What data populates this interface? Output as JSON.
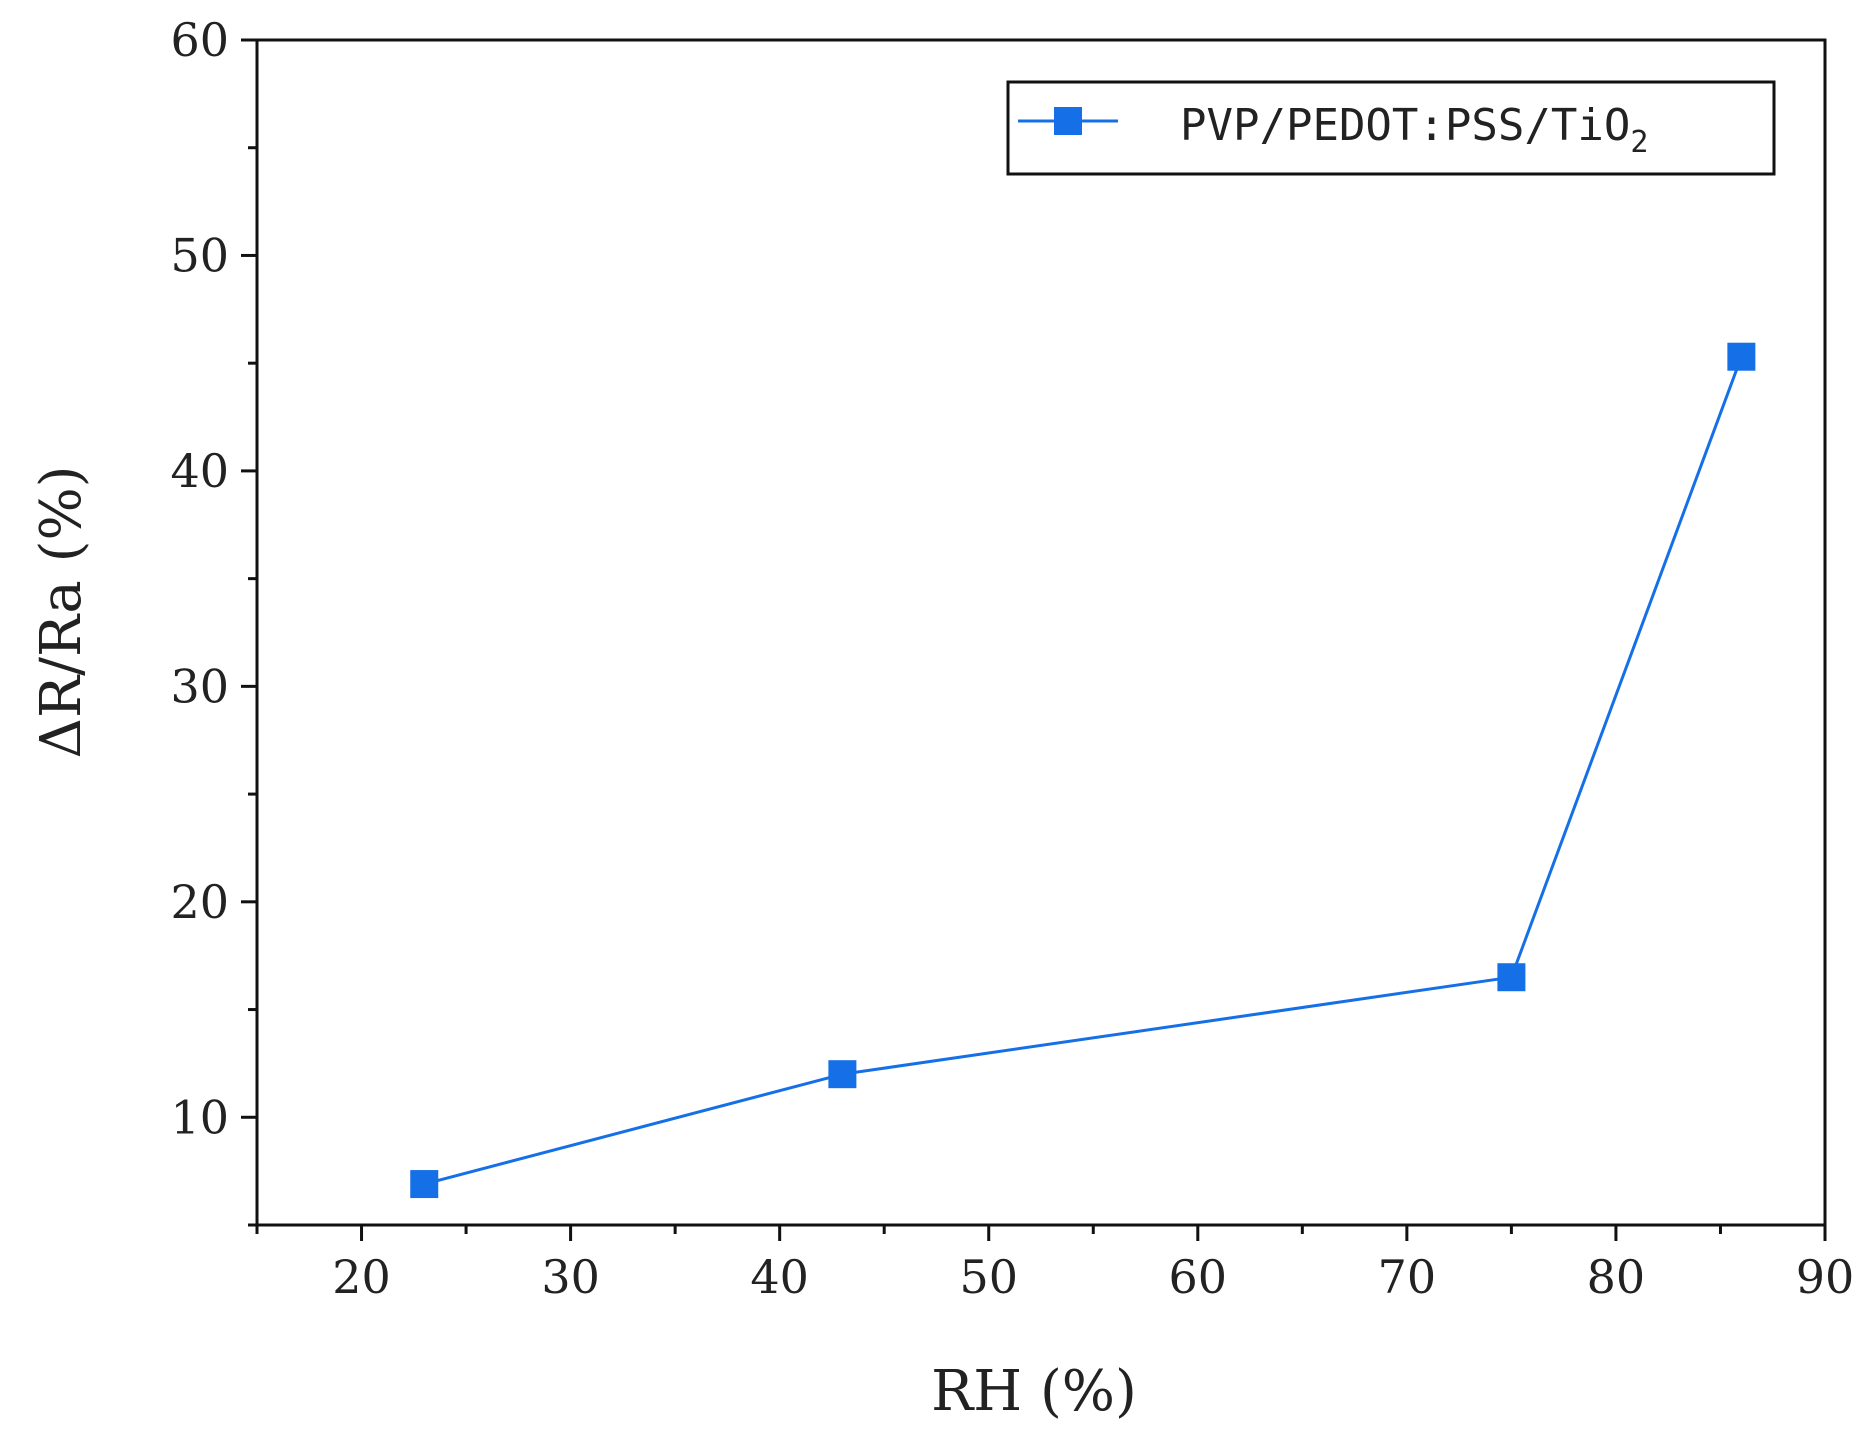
{
  "chart_data": {
    "type": "line",
    "title": "",
    "xlabel": "RH (%)",
    "ylabel": "ΔR/Ra (%)",
    "xlim": [
      15,
      90
    ],
    "ylim": [
      5,
      60
    ],
    "x_ticks": [
      20,
      30,
      40,
      50,
      60,
      70,
      80,
      90
    ],
    "y_ticks": [
      10,
      20,
      30,
      40,
      50,
      60
    ],
    "x_minor_step": 5,
    "y_minor_step": 5,
    "grid": false,
    "legend_position": "top-right",
    "series": [
      {
        "name": "PVP/PEDOT:PSS/TiO",
        "name_subscript": "2",
        "marker": "square",
        "color": "#1570e8",
        "x": [
          23,
          43,
          75,
          86
        ],
        "y": [
          6.9,
          12.0,
          16.5,
          45.3
        ]
      }
    ]
  }
}
